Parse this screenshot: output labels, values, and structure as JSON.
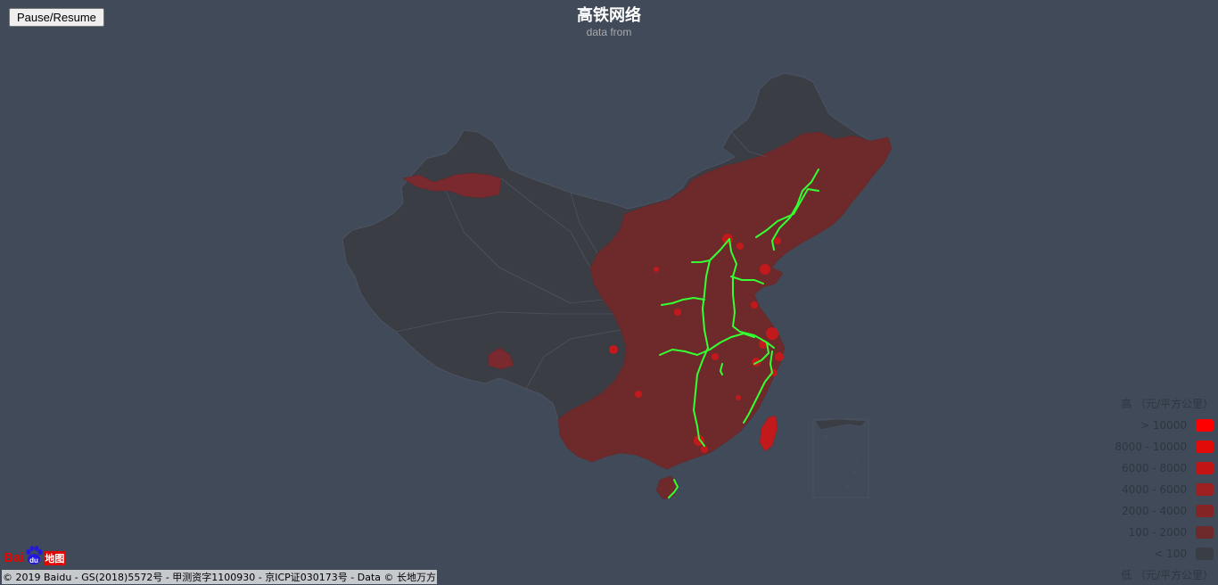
{
  "header": {
    "pause_label": "Pause/Resume",
    "title": "高铁网络",
    "subtitle": "data from"
  },
  "map": {
    "background_color": "#404a59",
    "land_color": "#3b3d45",
    "border_color": "#4d5360",
    "railway_color": "#33ff33",
    "density_color": "#7a2a2e",
    "highlight_color": "#c2191c"
  },
  "legend": {
    "high_label": "高",
    "unit_top": "（元/平方公里）",
    "low_label": "低",
    "unit_bottom": "（元/平方公里）",
    "items": [
      {
        "label": "> 10000",
        "color": "#ff0000"
      },
      {
        "label": "8000 - 10000",
        "color": "#e30a0a"
      },
      {
        "label": "6000 - 8000",
        "color": "#c21414"
      },
      {
        "label": "4000 - 6000",
        "color": "#9e1f1f"
      },
      {
        "label": "2000 - 4000",
        "color": "#852424"
      },
      {
        "label": "100 - 2000",
        "color": "#6e2a2a"
      },
      {
        "label": "< 100",
        "color": "#3b3d45"
      }
    ]
  },
  "footer": {
    "logo_text_1": "Bai",
    "logo_text_2": "du",
    "logo_text_3": "地图",
    "copyright": "© 2019 Baidu - GS(2018)5572号 - 甲测资字1100930 - 京ICP证030173号 - Data © 长地万方"
  }
}
